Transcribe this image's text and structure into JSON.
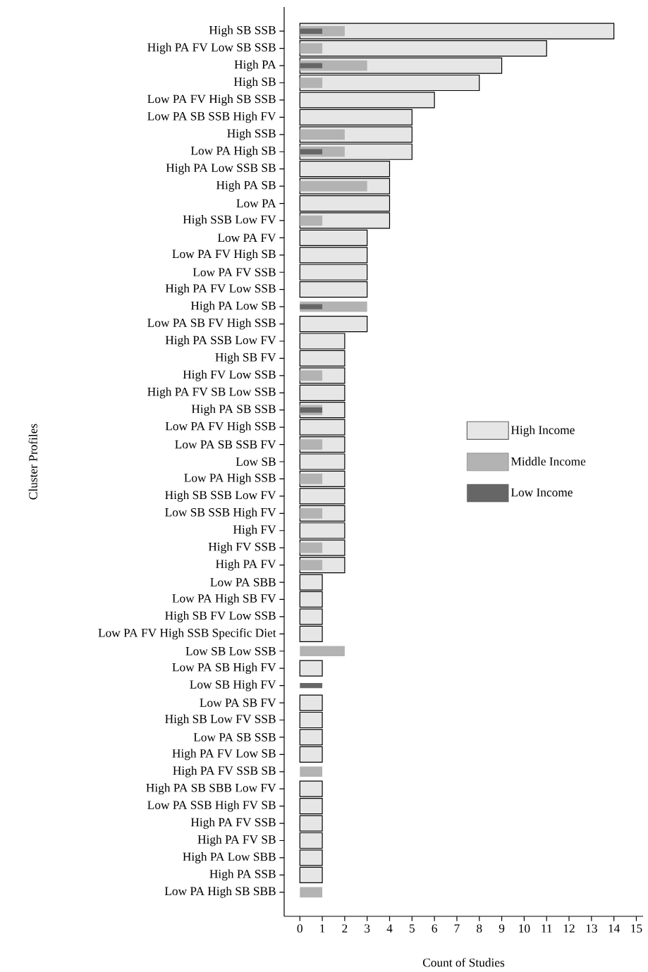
{
  "chart_data": {
    "type": "bar",
    "orientation": "horizontal",
    "categories": [
      "High SB SSB",
      "High PA FV Low SB SSB",
      "High PA",
      "High SB",
      "Low PA FV High SB SSB",
      "Low PA SB SSB High FV",
      "High SSB",
      "Low PA High SB",
      "High PA Low SSB SB",
      "High PA SB",
      "Low PA",
      "High SSB Low FV",
      "Low PA FV",
      "Low PA FV High SB",
      "Low PA FV SSB",
      "High PA FV Low SSB",
      "High PA Low SB",
      "Low PA SB FV High SSB",
      "High PA SSB Low FV",
      "High SB FV",
      "High FV Low SSB",
      "High PA FV SB Low SSB",
      "High PA SB SSB",
      "Low PA FV High SSB",
      "Low PA SB SSB FV",
      "Low SB",
      "Low PA High SSB",
      "High SB SSB Low FV",
      "Low SB SSB High FV",
      "High FV",
      "High FV SSB",
      "High PA FV",
      "Low PA SBB",
      "Low PA High SB FV",
      "High SB FV Low SSB",
      "Low PA FV High SSB Specific Diet",
      "Low SB Low SSB",
      "Low PA SB High FV",
      "Low SB High FV",
      "Low PA SB FV",
      "High SB Low FV SSB",
      "Low PA SB SSB",
      "High PA FV Low SB",
      "High PA FV SSB SB",
      "High PA SB SBB Low FV",
      "Low PA SSB High FV SB",
      "High PA FV SSB",
      "High PA FV SB",
      "High PA Low SBB",
      "High PA SSB",
      "Low PA High SB SBB"
    ],
    "series": [
      {
        "name": "High Income",
        "color": "#e6e6e6",
        "values": [
          14,
          11,
          9,
          8,
          6,
          5,
          5,
          5,
          4,
          4,
          4,
          4,
          3,
          3,
          3,
          3,
          null,
          3,
          2,
          2,
          2,
          2,
          2,
          2,
          2,
          2,
          2,
          2,
          2,
          2,
          2,
          2,
          1,
          1,
          1,
          1,
          null,
          1,
          null,
          1,
          1,
          1,
          1,
          null,
          1,
          1,
          1,
          1,
          1,
          1,
          null
        ]
      },
      {
        "name": "Middle Income",
        "color": "#b3b3b3",
        "values": [
          2,
          1,
          3,
          1,
          null,
          null,
          2,
          2,
          null,
          3,
          null,
          1,
          null,
          null,
          null,
          null,
          3,
          null,
          null,
          null,
          1,
          null,
          1,
          null,
          1,
          null,
          1,
          null,
          1,
          null,
          1,
          1,
          null,
          null,
          null,
          null,
          2,
          null,
          null,
          null,
          null,
          null,
          null,
          1,
          null,
          null,
          null,
          null,
          null,
          null,
          1
        ]
      },
      {
        "name": "Low Income",
        "color": "#666666",
        "values": [
          1,
          null,
          1,
          null,
          null,
          null,
          null,
          1,
          null,
          null,
          null,
          null,
          null,
          null,
          null,
          null,
          1,
          null,
          null,
          null,
          null,
          null,
          1,
          null,
          null,
          null,
          null,
          null,
          null,
          null,
          null,
          null,
          null,
          null,
          null,
          null,
          null,
          null,
          1,
          null,
          null,
          null,
          null,
          null,
          null,
          null,
          null,
          null,
          null,
          null,
          null
        ]
      }
    ],
    "xlabel": "Count of Studies",
    "ylabel": "Cluster Profiles",
    "xlim": [
      -0.7,
      15.3
    ],
    "xticks": [
      0,
      1,
      2,
      3,
      4,
      5,
      6,
      7,
      8,
      9,
      10,
      11,
      12,
      13,
      14,
      15
    ],
    "legend": "right"
  }
}
